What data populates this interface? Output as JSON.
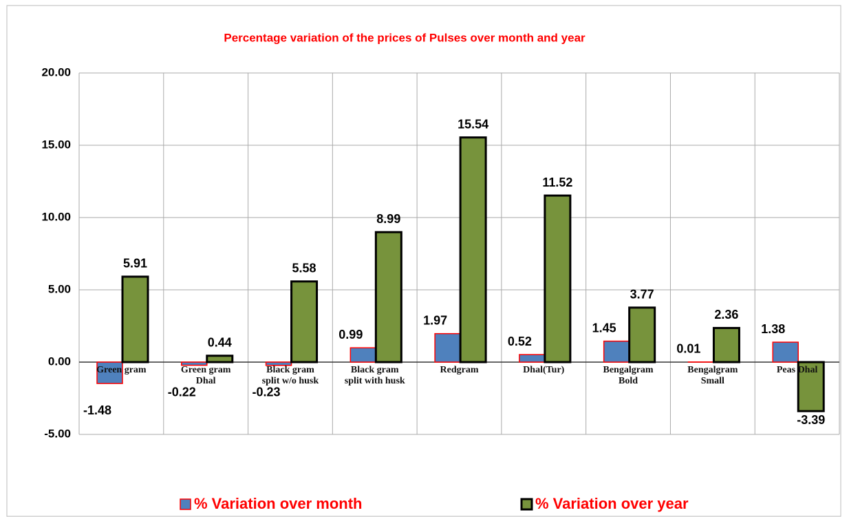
{
  "chart_data": {
    "type": "bar",
    "title": "Percentage variation of the prices of Pulses over month and year",
    "categories": [
      "Green gram",
      "Green gram Dhal",
      "Black gram split w/o husk",
      "Black gram split with husk",
      "Redgram",
      "Dhal(Tur)",
      "Bengalgram Bold",
      "Bengalgram Small",
      "Peas Dhal"
    ],
    "series": [
      {
        "name": "% Variation over month",
        "color": "#4f81bd",
        "values": [
          -1.48,
          -0.22,
          -0.23,
          0.99,
          1.97,
          0.52,
          1.45,
          0.01,
          1.38
        ]
      },
      {
        "name": "% Variation over year",
        "color": "#77933c",
        "values": [
          5.91,
          0.44,
          5.58,
          8.99,
          15.54,
          11.52,
          3.77,
          2.36,
          -3.39
        ]
      }
    ],
    "ylim": [
      -5,
      20
    ],
    "yticks": [
      {
        "value": -5,
        "label": "-5.00"
      },
      {
        "value": 0,
        "label": "0.00"
      },
      {
        "value": 5,
        "label": "5.00"
      },
      {
        "value": 10,
        "label": "10.00"
      },
      {
        "value": 15,
        "label": "15.00"
      },
      {
        "value": 20,
        "label": "20.00"
      }
    ],
    "grid": true
  }
}
